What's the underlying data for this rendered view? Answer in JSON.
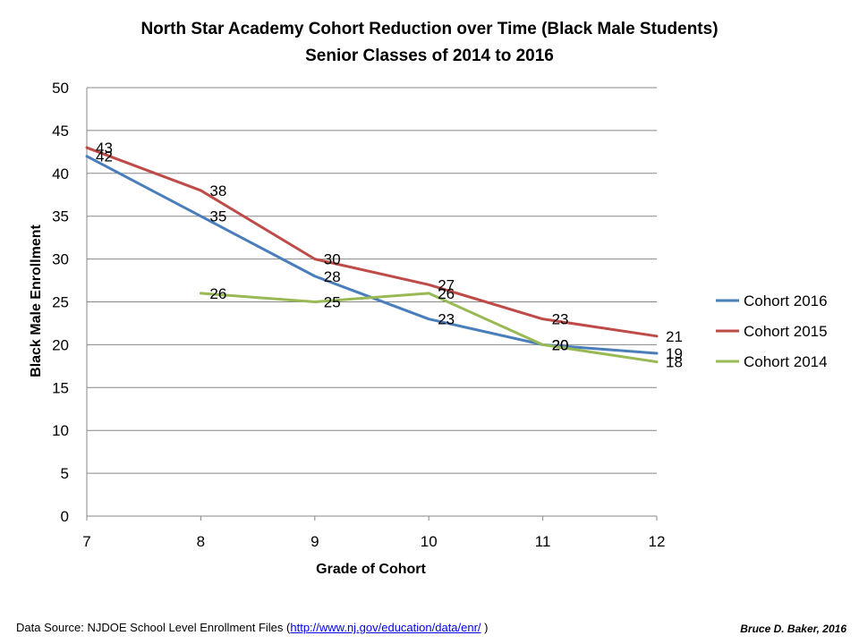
{
  "chart_data": {
    "type": "line",
    "title": "North Star Academy Cohort Reduction over Time (Black Male Students)",
    "subtitle": "Senior Classes of 2014 to 2016",
    "xlabel": "Grade of Cohort",
    "ylabel": "Black Male Enrollment",
    "x": [
      7,
      8,
      9,
      10,
      11,
      12
    ],
    "xlim": [
      7,
      12
    ],
    "ylim": [
      0,
      50
    ],
    "yticks": [
      0,
      5,
      10,
      15,
      20,
      25,
      30,
      35,
      40,
      45,
      50
    ],
    "grid": true,
    "legend_position": "right",
    "series": [
      {
        "name": "Cohort 2016",
        "color": "#4a7ebb",
        "values": [
          42,
          35,
          28,
          23,
          20,
          19
        ]
      },
      {
        "name": "Cohort 2015",
        "color": "#be4b48",
        "values": [
          43,
          38,
          30,
          27,
          23,
          21
        ]
      },
      {
        "name": "Cohort 2014",
        "color": "#98b954",
        "values": [
          null,
          26,
          25,
          26,
          20,
          18
        ]
      }
    ]
  },
  "footer": {
    "source_prefix": "Data Source: NJDOE School Level Enrollment Files (",
    "source_link": "http://www.nj.gov/education/data/enr/",
    "source_suffix": " )",
    "credit": "Bruce D. Baker, 2016"
  }
}
